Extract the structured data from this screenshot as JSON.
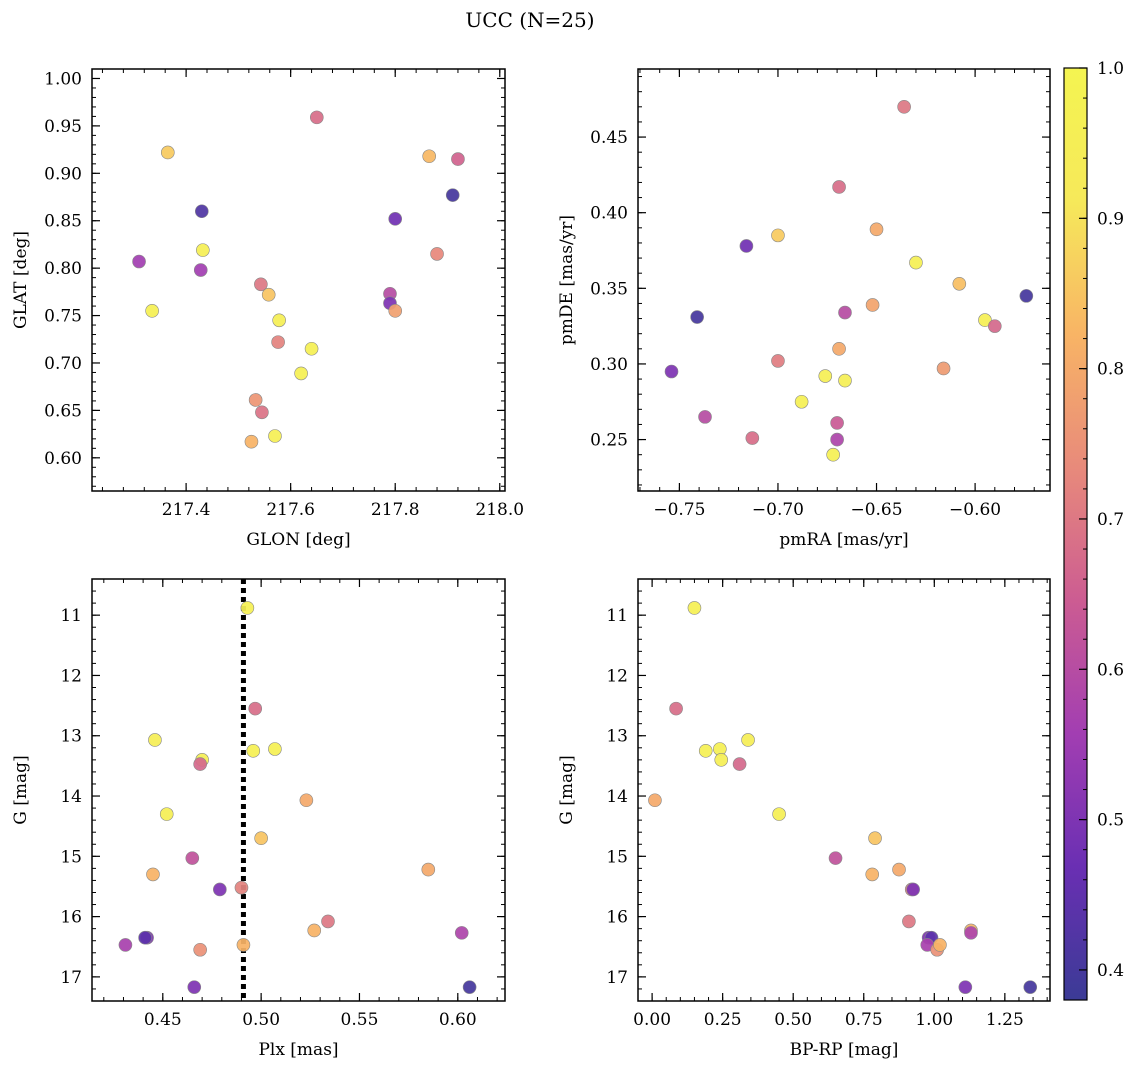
{
  "figure": {
    "title": "UCC (N=25)"
  },
  "colorbar": {
    "min": 0.38,
    "max": 1.0,
    "ticks": [
      0.4,
      0.5,
      0.6,
      0.7,
      0.8,
      0.9,
      1.0
    ],
    "tick_labels": [
      "0.4",
      "0.5",
      "0.6",
      "0.7",
      "0.8",
      "0.9",
      "1.0"
    ],
    "colormap": "plasma (truncated)",
    "stops": [
      "#3b3b96",
      "#6a2fb3",
      "#a23eb2",
      "#cc5c92",
      "#e88a7b",
      "#f8b465",
      "#f6e95a",
      "#f4f451"
    ]
  },
  "style": {
    "dot_edge": "#888888",
    "dashed_line": "#000000"
  },
  "chart_data": [
    {
      "id": "p1",
      "type": "scatter",
      "xlabel": "GLON [deg]",
      "ylabel": "GLAT [deg]",
      "xlim": [
        217.22,
        218.01
      ],
      "ylim": [
        0.565,
        1.01
      ],
      "xticks": [
        217.4,
        217.6,
        217.8,
        218.0
      ],
      "xtick_labels": [
        "217.4",
        "217.6",
        "217.8",
        "218.0"
      ],
      "yticks": [
        0.6,
        0.65,
        0.7,
        0.75,
        0.8,
        0.85,
        0.9,
        0.95,
        1.0
      ],
      "ytick_labels": [
        "0.60",
        "0.65",
        "0.70",
        "0.75",
        "0.80",
        "0.85",
        "0.90",
        "0.95",
        "1.00"
      ],
      "invert_y": false,
      "points": [
        {
          "x": 217.31,
          "y": 0.807,
          "c": 0.56
        },
        {
          "x": 217.335,
          "y": 0.755,
          "c": 0.97
        },
        {
          "x": 217.365,
          "y": 0.922,
          "c": 0.86
        },
        {
          "x": 217.428,
          "y": 0.798,
          "c": 0.56
        },
        {
          "x": 217.43,
          "y": 0.86,
          "c": 0.42
        },
        {
          "x": 217.432,
          "y": 0.819,
          "c": 0.96
        },
        {
          "x": 217.525,
          "y": 0.617,
          "c": 0.82
        },
        {
          "x": 217.533,
          "y": 0.661,
          "c": 0.76
        },
        {
          "x": 217.543,
          "y": 0.783,
          "c": 0.7
        },
        {
          "x": 217.545,
          "y": 0.648,
          "c": 0.69
        },
        {
          "x": 217.558,
          "y": 0.772,
          "c": 0.85
        },
        {
          "x": 217.57,
          "y": 0.623,
          "c": 0.96
        },
        {
          "x": 217.576,
          "y": 0.722,
          "c": 0.72
        },
        {
          "x": 217.578,
          "y": 0.745,
          "c": 0.96
        },
        {
          "x": 217.62,
          "y": 0.689,
          "c": 0.97
        },
        {
          "x": 217.64,
          "y": 0.715,
          "c": 0.97
        },
        {
          "x": 217.65,
          "y": 0.959,
          "c": 0.68
        },
        {
          "x": 217.79,
          "y": 0.773,
          "c": 0.6
        },
        {
          "x": 217.79,
          "y": 0.763,
          "c": 0.5
        },
        {
          "x": 217.8,
          "y": 0.852,
          "c": 0.48
        },
        {
          "x": 217.8,
          "y": 0.755,
          "c": 0.78
        },
        {
          "x": 217.865,
          "y": 0.918,
          "c": 0.83
        },
        {
          "x": 217.88,
          "y": 0.815,
          "c": 0.73
        },
        {
          "x": 217.91,
          "y": 0.877,
          "c": 0.4
        },
        {
          "x": 217.92,
          "y": 0.915,
          "c": 0.66
        }
      ]
    },
    {
      "id": "p2",
      "type": "scatter",
      "xlabel": "pmRA [mas/yr]",
      "ylabel": "pmDE [mas/yr]",
      "xlim": [
        -0.771,
        -0.562
      ],
      "ylim": [
        0.216,
        0.495
      ],
      "xticks": [
        -0.75,
        -0.7,
        -0.65,
        -0.6
      ],
      "xtick_labels": [
        "−0.75",
        "−0.70",
        "−0.65",
        "−0.60"
      ],
      "yticks": [
        0.25,
        0.3,
        0.35,
        0.4,
        0.45
      ],
      "ytick_labels": [
        "0.25",
        "0.30",
        "0.35",
        "0.40",
        "0.45"
      ],
      "invert_y": false,
      "points": [
        {
          "x": -0.754,
          "y": 0.295,
          "c": 0.5
        },
        {
          "x": -0.741,
          "y": 0.331,
          "c": 0.4
        },
        {
          "x": -0.737,
          "y": 0.265,
          "c": 0.6
        },
        {
          "x": -0.716,
          "y": 0.378,
          "c": 0.48
        },
        {
          "x": -0.713,
          "y": 0.251,
          "c": 0.68
        },
        {
          "x": -0.7,
          "y": 0.385,
          "c": 0.86
        },
        {
          "x": -0.7,
          "y": 0.302,
          "c": 0.71
        },
        {
          "x": -0.688,
          "y": 0.275,
          "c": 0.97
        },
        {
          "x": -0.676,
          "y": 0.292,
          "c": 0.96
        },
        {
          "x": -0.672,
          "y": 0.24,
          "c": 0.97
        },
        {
          "x": -0.67,
          "y": 0.261,
          "c": 0.64
        },
        {
          "x": -0.67,
          "y": 0.25,
          "c": 0.58
        },
        {
          "x": -0.669,
          "y": 0.417,
          "c": 0.68
        },
        {
          "x": -0.669,
          "y": 0.31,
          "c": 0.8
        },
        {
          "x": -0.666,
          "y": 0.334,
          "c": 0.6
        },
        {
          "x": -0.666,
          "y": 0.289,
          "c": 0.96
        },
        {
          "x": -0.652,
          "y": 0.339,
          "c": 0.79
        },
        {
          "x": -0.65,
          "y": 0.389,
          "c": 0.8
        },
        {
          "x": -0.636,
          "y": 0.47,
          "c": 0.7
        },
        {
          "x": -0.63,
          "y": 0.367,
          "c": 0.97
        },
        {
          "x": -0.616,
          "y": 0.297,
          "c": 0.77
        },
        {
          "x": -0.608,
          "y": 0.353,
          "c": 0.84
        },
        {
          "x": -0.595,
          "y": 0.329,
          "c": 0.96
        },
        {
          "x": -0.59,
          "y": 0.325,
          "c": 0.67
        },
        {
          "x": -0.574,
          "y": 0.345,
          "c": 0.4
        }
      ]
    },
    {
      "id": "p3",
      "type": "scatter",
      "xlabel": "Plx [mas]",
      "ylabel": "G [mag]",
      "xlim": [
        0.414,
        0.624
      ],
      "ylim": [
        17.4,
        10.4
      ],
      "xticks": [
        0.45,
        0.5,
        0.55,
        0.6
      ],
      "xtick_labels": [
        "0.45",
        "0.50",
        "0.55",
        "0.60"
      ],
      "yticks": [
        11,
        12,
        13,
        14,
        15,
        16,
        17
      ],
      "ytick_labels": [
        "11",
        "12",
        "13",
        "14",
        "15",
        "16",
        "17"
      ],
      "invert_y": true,
      "vline": 0.491,
      "points": [
        {
          "x": 0.493,
          "y": 10.88,
          "c": 0.97
        },
        {
          "x": 0.497,
          "y": 12.55,
          "c": 0.68
        },
        {
          "x": 0.446,
          "y": 13.07,
          "c": 0.95
        },
        {
          "x": 0.47,
          "y": 13.4,
          "c": 0.96
        },
        {
          "x": 0.469,
          "y": 13.47,
          "c": 0.67
        },
        {
          "x": 0.496,
          "y": 13.25,
          "c": 0.97
        },
        {
          "x": 0.507,
          "y": 13.22,
          "c": 0.97
        },
        {
          "x": 0.523,
          "y": 14.07,
          "c": 0.8
        },
        {
          "x": 0.452,
          "y": 14.3,
          "c": 0.96
        },
        {
          "x": 0.5,
          "y": 14.7,
          "c": 0.85
        },
        {
          "x": 0.465,
          "y": 15.03,
          "c": 0.62
        },
        {
          "x": 0.445,
          "y": 15.3,
          "c": 0.82
        },
        {
          "x": 0.585,
          "y": 15.22,
          "c": 0.8
        },
        {
          "x": 0.479,
          "y": 15.55,
          "c": 0.5
        },
        {
          "x": 0.49,
          "y": 15.52,
          "c": 0.72
        },
        {
          "x": 0.534,
          "y": 16.08,
          "c": 0.7
        },
        {
          "x": 0.527,
          "y": 16.23,
          "c": 0.82
        },
        {
          "x": 0.602,
          "y": 16.27,
          "c": 0.58
        },
        {
          "x": 0.442,
          "y": 16.35,
          "c": 0.5
        },
        {
          "x": 0.441,
          "y": 16.35,
          "c": 0.44
        },
        {
          "x": 0.431,
          "y": 16.47,
          "c": 0.57
        },
        {
          "x": 0.469,
          "y": 16.55,
          "c": 0.75
        },
        {
          "x": 0.491,
          "y": 16.47,
          "c": 0.82
        },
        {
          "x": 0.466,
          "y": 17.17,
          "c": 0.5
        },
        {
          "x": 0.606,
          "y": 17.17,
          "c": 0.4
        }
      ]
    },
    {
      "id": "p4",
      "type": "scatter",
      "xlabel": "BP-RP [mag]",
      "ylabel": "G [mag]",
      "xlim": [
        -0.05,
        1.41
      ],
      "ylim": [
        17.4,
        10.4
      ],
      "xticks": [
        0.0,
        0.25,
        0.5,
        0.75,
        1.0,
        1.25
      ],
      "xtick_labels": [
        "0.00",
        "0.25",
        "0.50",
        "0.75",
        "1.00",
        "1.25"
      ],
      "yticks": [
        11,
        12,
        13,
        14,
        15,
        16,
        17
      ],
      "ytick_labels": [
        "11",
        "12",
        "13",
        "14",
        "15",
        "16",
        "17"
      ],
      "invert_y": true,
      "points": [
        {
          "x": 0.15,
          "y": 10.88,
          "c": 0.97
        },
        {
          "x": 0.085,
          "y": 12.55,
          "c": 0.68
        },
        {
          "x": 0.19,
          "y": 13.25,
          "c": 0.97
        },
        {
          "x": 0.24,
          "y": 13.22,
          "c": 0.97
        },
        {
          "x": 0.245,
          "y": 13.4,
          "c": 0.96
        },
        {
          "x": 0.34,
          "y": 13.07,
          "c": 0.95
        },
        {
          "x": 0.31,
          "y": 13.47,
          "c": 0.67
        },
        {
          "x": 0.01,
          "y": 14.07,
          "c": 0.8
        },
        {
          "x": 0.45,
          "y": 14.3,
          "c": 0.96
        },
        {
          "x": 0.65,
          "y": 15.03,
          "c": 0.62
        },
        {
          "x": 0.79,
          "y": 14.7,
          "c": 0.85
        },
        {
          "x": 0.78,
          "y": 15.3,
          "c": 0.82
        },
        {
          "x": 0.875,
          "y": 15.22,
          "c": 0.8
        },
        {
          "x": 0.92,
          "y": 15.55,
          "c": 0.72
        },
        {
          "x": 0.925,
          "y": 15.55,
          "c": 0.5
        },
        {
          "x": 0.91,
          "y": 16.08,
          "c": 0.7
        },
        {
          "x": 0.98,
          "y": 16.35,
          "c": 0.5
        },
        {
          "x": 0.99,
          "y": 16.35,
          "c": 0.44
        },
        {
          "x": 0.975,
          "y": 16.47,
          "c": 0.57
        },
        {
          "x": 1.01,
          "y": 16.55,
          "c": 0.75
        },
        {
          "x": 1.02,
          "y": 16.47,
          "c": 0.82
        },
        {
          "x": 1.13,
          "y": 16.23,
          "c": 0.82
        },
        {
          "x": 1.13,
          "y": 16.27,
          "c": 0.58
        },
        {
          "x": 1.11,
          "y": 17.17,
          "c": 0.5
        },
        {
          "x": 1.34,
          "y": 17.17,
          "c": 0.4
        }
      ]
    }
  ]
}
